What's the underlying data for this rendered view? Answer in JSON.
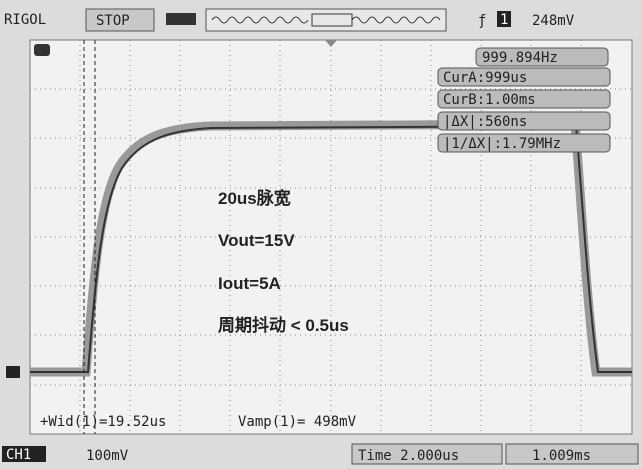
{
  "top_bar": {
    "brand": "RIGOL",
    "status": "STOP",
    "trigger_channel": "1",
    "trigger_level": "248mV"
  },
  "measure": {
    "frequency": "999.894Hz",
    "cur_a": "CurA:999us",
    "cur_b": "CurB:1.00ms",
    "delta_x": "|ΔX|:560ns",
    "inv_delta_x": "|1/ΔX|:1.79MHz",
    "width": "+Wid(1)=19.52us",
    "vamp": "Vamp(1)= 498mV"
  },
  "annotations": [
    "20us脉宽",
    "Vout=15V",
    "Iout=5A",
    "周期抖动 < 0.5us"
  ],
  "bottom_bar": {
    "channel": "CH1",
    "scale": "100mV",
    "time": "Time 2.000us",
    "offset": "1.009ms"
  }
}
